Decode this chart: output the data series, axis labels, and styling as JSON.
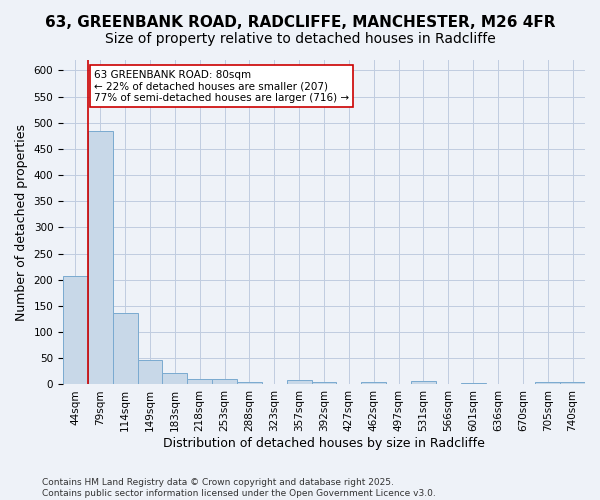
{
  "title": "63, GREENBANK ROAD, RADCLIFFE, MANCHESTER, M26 4FR",
  "subtitle": "Size of property relative to detached houses in Radcliffe",
  "xlabel": "Distribution of detached houses by size in Radcliffe",
  "ylabel": "Number of detached properties",
  "footer": "Contains HM Land Registry data © Crown copyright and database right 2025.\nContains public sector information licensed under the Open Government Licence v3.0.",
  "bin_labels": [
    "44sqm",
    "79sqm",
    "114sqm",
    "149sqm",
    "183sqm",
    "218sqm",
    "253sqm",
    "288sqm",
    "323sqm",
    "357sqm",
    "392sqm",
    "427sqm",
    "462sqm",
    "497sqm",
    "531sqm",
    "566sqm",
    "601sqm",
    "636sqm",
    "670sqm",
    "705sqm",
    "740sqm"
  ],
  "bar_values": [
    207,
    484,
    137,
    46,
    22,
    11,
    11,
    5,
    1,
    9,
    4,
    1,
    5,
    1,
    6,
    0,
    3,
    1,
    0,
    4,
    4
  ],
  "bar_color": "#c8d8e8",
  "bar_edge_color": "#7aaad0",
  "property_size": "80sqm",
  "annotation_text": "63 GREENBANK ROAD: 80sqm\n← 22% of detached houses are smaller (207)\n77% of semi-detached houses are larger (716) →",
  "annotation_box_color": "#ffffff",
  "annotation_border_color": "#cc0000",
  "line_color": "#cc0000",
  "ylim": [
    0,
    620
  ],
  "yticks": [
    0,
    50,
    100,
    150,
    200,
    250,
    300,
    350,
    400,
    450,
    500,
    550,
    600
  ],
  "bg_color": "#eef2f8",
  "grid_color": "#c0cce0",
  "title_fontsize": 11,
  "subtitle_fontsize": 10,
  "axis_fontsize": 9,
  "tick_fontsize": 7.5,
  "footer_fontsize": 6.5
}
